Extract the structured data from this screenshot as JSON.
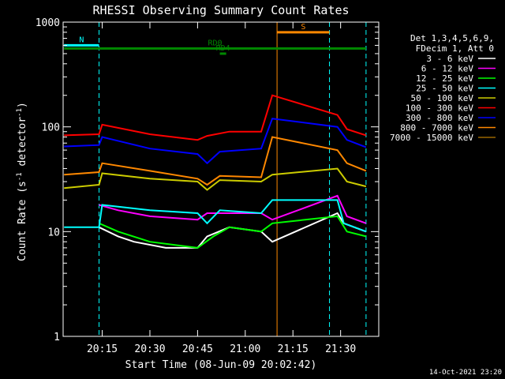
{
  "chart_data": {
    "type": "line",
    "title": "RHESSI Observing Summary Count Rates",
    "xlabel": "Start Time (08-Jun-09 20:02:42)",
    "ylabel": "Count Rate (s^-1 detector^-1)",
    "ylabel_main": "Count Rate (s",
    "ylabel_sup": "-1",
    "ylabel_mid": " detector",
    "ylabel_sup2": "-1",
    "ylabel_end": ")",
    "y_scale": "log",
    "xlim": [
      "20:02:42",
      "21:42:00"
    ],
    "ylim": [
      1,
      1000
    ],
    "x_ticks": [
      "20:15",
      "20:30",
      "20:45",
      "21:00",
      "21:15",
      "21:30"
    ],
    "y_ticks": [
      {
        "value": 1,
        "label": "1"
      },
      {
        "value": 10,
        "label": "10"
      },
      {
        "value": 100,
        "label": "100"
      },
      {
        "value": 1000,
        "label": "1000"
      }
    ],
    "legend_header": [
      "Det 1,3,4,5,6,9,",
      "FDecim 1, Att 0"
    ],
    "legend_position": "right",
    "series": [
      {
        "name": "3 - 6 keV",
        "color": "#ffffff",
        "points": [
          [
            "20:14:00",
            11
          ],
          [
            "20:20:00",
            9
          ],
          [
            "20:25:00",
            8
          ],
          [
            "20:35:00",
            7
          ],
          [
            "20:45:00",
            7
          ],
          [
            "20:48:00",
            9
          ],
          [
            "20:55:00",
            11
          ],
          [
            "21:05:00",
            10
          ],
          [
            "21:08:30",
            8
          ],
          [
            "21:29:00",
            15
          ],
          [
            "21:31:00",
            12
          ],
          [
            "21:38:00",
            10
          ]
        ]
      },
      {
        "name": "6 - 12 keV",
        "color": "#ff00ff",
        "points": [
          [
            "20:14:00",
            18
          ],
          [
            "20:20:00",
            16
          ],
          [
            "20:30:00",
            14
          ],
          [
            "20:45:00",
            13
          ],
          [
            "20:48:00",
            15
          ],
          [
            "21:05:00",
            15
          ],
          [
            "21:08:30",
            13
          ],
          [
            "21:29:00",
            22
          ],
          [
            "21:32:00",
            14
          ],
          [
            "21:38:00",
            12
          ]
        ]
      },
      {
        "name": "12 - 25 keV",
        "color": "#00ff00",
        "points": [
          [
            "20:14:00",
            12
          ],
          [
            "20:20:00",
            10
          ],
          [
            "20:30:00",
            8
          ],
          [
            "20:45:00",
            7
          ],
          [
            "20:50:00",
            9
          ],
          [
            "20:55:00",
            11
          ],
          [
            "21:05:00",
            10
          ],
          [
            "21:08:30",
            12
          ],
          [
            "21:29:00",
            14
          ],
          [
            "21:32:00",
            10
          ],
          [
            "21:38:00",
            9
          ]
        ]
      },
      {
        "name": "25 - 50 keV",
        "color": "#00ffff",
        "points": [
          [
            "20:03:00",
            11
          ],
          [
            "20:14:00",
            11
          ],
          [
            "20:15:00",
            18
          ],
          [
            "20:30:00",
            16
          ],
          [
            "20:45:00",
            15
          ],
          [
            "20:48:00",
            12
          ],
          [
            "20:52:00",
            16
          ],
          [
            "21:05:00",
            15
          ],
          [
            "21:08:30",
            20
          ],
          [
            "21:29:00",
            20
          ],
          [
            "21:31:00",
            12
          ],
          [
            "21:38:00",
            10
          ]
        ]
      },
      {
        "name": "50 - 100 keV",
        "color": "#cccc00",
        "points": [
          [
            "20:03:00",
            26
          ],
          [
            "20:14:00",
            28
          ],
          [
            "20:15:00",
            36
          ],
          [
            "20:30:00",
            32
          ],
          [
            "20:45:00",
            30
          ],
          [
            "20:48:00",
            25
          ],
          [
            "20:52:00",
            31
          ],
          [
            "21:05:00",
            30
          ],
          [
            "21:08:30",
            35
          ],
          [
            "21:29:00",
            40
          ],
          [
            "21:32:00",
            30
          ],
          [
            "21:38:00",
            27
          ]
        ]
      },
      {
        "name": "100 - 300 keV",
        "color": "#ff0000",
        "points": [
          [
            "20:03:00",
            83
          ],
          [
            "20:14:00",
            85
          ],
          [
            "20:15:00",
            105
          ],
          [
            "20:30:00",
            85
          ],
          [
            "20:45:00",
            75
          ],
          [
            "20:48:00",
            82
          ],
          [
            "20:55:00",
            90
          ],
          [
            "21:05:00",
            90
          ],
          [
            "21:08:30",
            200
          ],
          [
            "21:29:00",
            130
          ],
          [
            "21:32:00",
            95
          ],
          [
            "21:38:00",
            83
          ]
        ]
      },
      {
        "name": "300 - 800 keV",
        "color": "#0000ff",
        "points": [
          [
            "20:03:00",
            65
          ],
          [
            "20:14:00",
            67
          ],
          [
            "20:15:00",
            80
          ],
          [
            "20:30:00",
            62
          ],
          [
            "20:45:00",
            55
          ],
          [
            "20:48:00",
            45
          ],
          [
            "20:52:00",
            58
          ],
          [
            "21:05:00",
            62
          ],
          [
            "21:08:30",
            120
          ],
          [
            "21:29:00",
            100
          ],
          [
            "21:32:00",
            75
          ],
          [
            "21:38:00",
            64
          ]
        ]
      },
      {
        "name": "800 - 7000 keV",
        "color": "#ff8800",
        "points": [
          [
            "20:03:00",
            35
          ],
          [
            "20:14:00",
            37
          ],
          [
            "20:15:00",
            45
          ],
          [
            "20:30:00",
            38
          ],
          [
            "20:45:00",
            32
          ],
          [
            "20:48:00",
            28
          ],
          [
            "20:52:00",
            34
          ],
          [
            "21:05:00",
            33
          ],
          [
            "21:08:30",
            80
          ],
          [
            "21:29:00",
            60
          ],
          [
            "21:32:00",
            45
          ],
          [
            "21:38:00",
            38
          ]
        ]
      },
      {
        "name": "7000 - 15000 keV",
        "color": "#996600",
        "points": []
      }
    ],
    "annotations": [
      {
        "label": "N",
        "color": "#00ffff",
        "from": "20:03:00",
        "to": "20:14:00",
        "level": 600
      },
      {
        "label": "S",
        "color": "#ff8800",
        "from": "21:10:00",
        "to": "21:26:30",
        "level": 800
      },
      {
        "label": "RD0",
        "color": "#008800",
        "from": "20:03:00",
        "to": "21:38:00",
        "level": 560
      },
      {
        "label": "RD4",
        "color": "#008800",
        "from": "20:52:00",
        "to": "20:54:00",
        "level": 500
      }
    ],
    "vertical_markers": [
      {
        "time": "20:14:00",
        "color": "#00ffff",
        "style": "dashed"
      },
      {
        "time": "21:26:30",
        "color": "#00ffff",
        "style": "dashed"
      },
      {
        "time": "21:38:00",
        "color": "#00ffff",
        "style": "dashed"
      },
      {
        "time": "21:10:00",
        "color": "#ff8800",
        "style": "solid"
      }
    ]
  },
  "footer": {
    "timestamp": "14-Oct-2021 23:20"
  }
}
